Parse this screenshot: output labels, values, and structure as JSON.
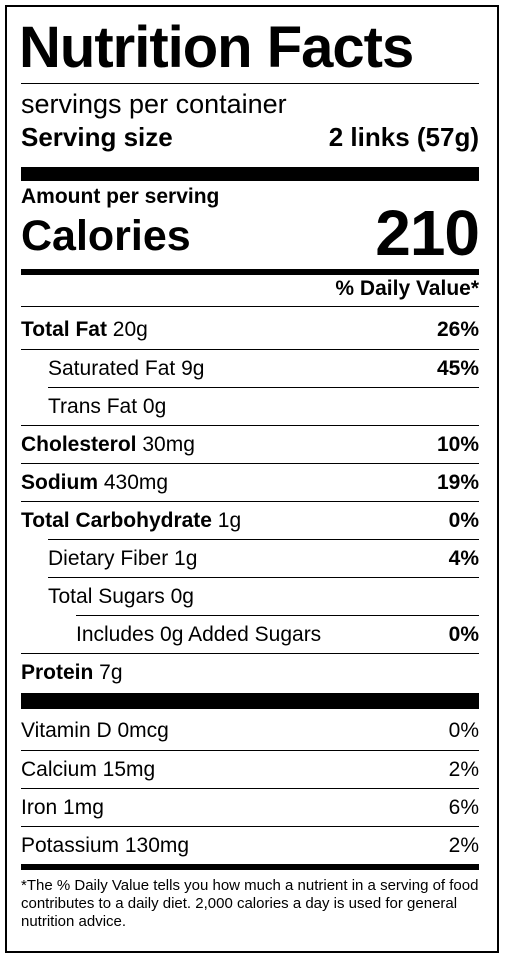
{
  "title": "Nutrition Facts",
  "servings_per_container": "servings per container",
  "serving_size_label": "Serving size",
  "serving_size_value": "2 links (57g)",
  "amount_per_serving": "Amount per serving",
  "calories_label": "Calories",
  "calories_value": "210",
  "daily_value_header": "% Daily Value*",
  "nutrients": [
    {
      "name": "Total Fat",
      "amount": " 20g",
      "dv": "26%"
    },
    {
      "name": "Saturated Fat 9g",
      "amount": "",
      "dv": "45%"
    },
    {
      "name": "Trans Fat 0g",
      "amount": "",
      "dv": ""
    },
    {
      "name": "Cholesterol",
      "amount": " 30mg",
      "dv": "10%"
    },
    {
      "name": "Sodium",
      "amount": " 430mg",
      "dv": "19%"
    },
    {
      "name": "Total Carbohydrate",
      "amount": " 1g",
      "dv": "0%"
    },
    {
      "name": "Dietary Fiber 1g",
      "amount": "",
      "dv": "4%"
    },
    {
      "name": "Total Sugars 0g",
      "amount": "",
      "dv": ""
    },
    {
      "name": "Includes 0g Added Sugars",
      "amount": "",
      "dv": "0%"
    },
    {
      "name": "Protein",
      "amount": " 7g",
      "dv": ""
    }
  ],
  "vitamins": [
    {
      "name": "Vitamin D 0mcg",
      "dv": "0%"
    },
    {
      "name": "Calcium 15mg",
      "dv": "2%"
    },
    {
      "name": "Iron 1mg",
      "dv": "6%"
    },
    {
      "name": "Potassium 130mg",
      "dv": "2%"
    }
  ],
  "footnote": "*The % Daily Value tells you how much a nutrient in a serving of food contributes to a daily diet. 2,000 calories a day is used for general nutrition advice."
}
